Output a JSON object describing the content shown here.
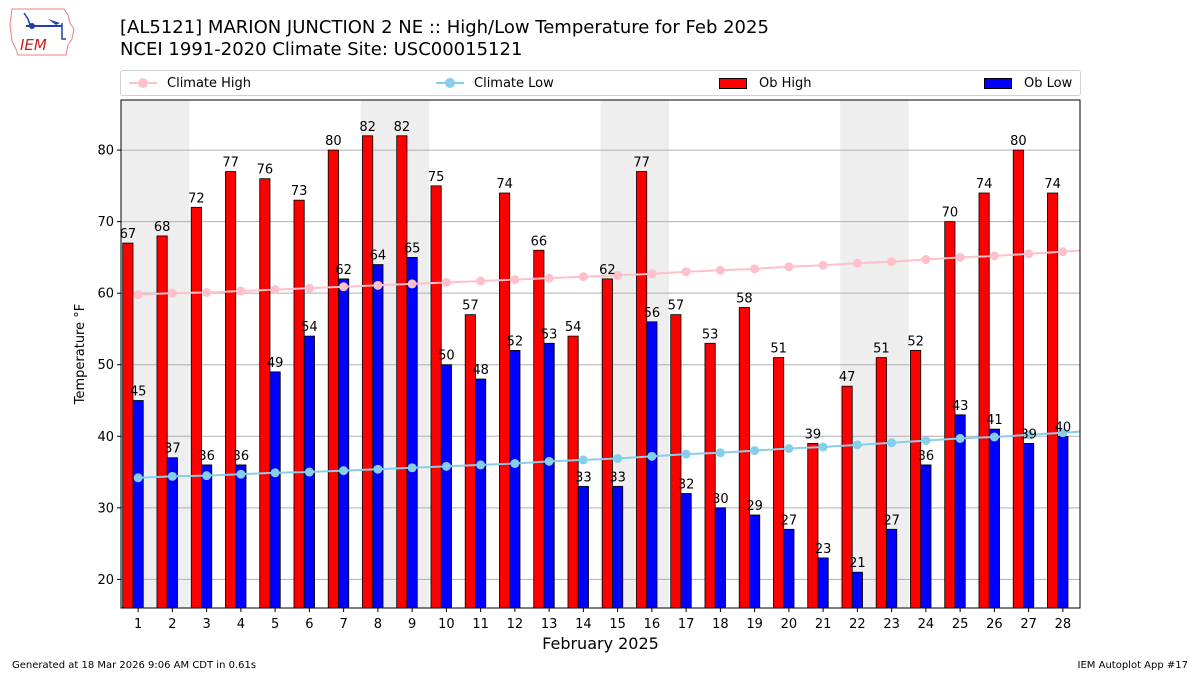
{
  "header": {
    "title_line1": "[AL5121] MARION JUNCTION 2 NE :: High/Low Temperature for Feb 2025",
    "title_line2": "NCEI 1991-2020 Climate Site: USC00015121",
    "logo_text": "IEM"
  },
  "legend": {
    "climate_high": "Climate High",
    "climate_low": "Climate Low",
    "ob_high": "Ob High",
    "ob_low": "Ob Low"
  },
  "footer": {
    "generated": "Generated at 18 Mar 2026 9:06 AM CDT in 0.61s",
    "app": "IEM Autoplot App #17"
  },
  "colors": {
    "ob_high": "#ff0000",
    "ob_low": "#0000ff",
    "climate_high": "#ffc0cb",
    "climate_low": "#87ceeb",
    "weekend_shade": "#eeeeee",
    "grid": "#b0b0b0"
  },
  "chart_data": {
    "type": "bar",
    "title": "[AL5121] MARION JUNCTION 2 NE :: High/Low Temperature for Feb 2025",
    "subtitle": "NCEI 1991-2020 Climate Site: USC00015121",
    "xlabel": "February 2025",
    "ylabel": "Temperature °F",
    "xlim": [
      0.5,
      28.5
    ],
    "ylim": [
      16,
      87
    ],
    "yticks": [
      20,
      30,
      40,
      50,
      60,
      70,
      80
    ],
    "grid": true,
    "legend_position": "top",
    "categories": [
      1,
      2,
      3,
      4,
      5,
      6,
      7,
      8,
      9,
      10,
      11,
      12,
      13,
      14,
      15,
      16,
      17,
      18,
      19,
      20,
      21,
      22,
      23,
      24,
      25,
      26,
      27,
      28
    ],
    "weekend_days": [
      1,
      2,
      8,
      9,
      15,
      16,
      22,
      23
    ],
    "series": [
      {
        "name": "Ob High",
        "kind": "bar",
        "values": [
          67,
          68,
          72,
          77,
          76,
          73,
          80,
          82,
          82,
          75,
          57,
          74,
          66,
          54,
          62,
          77,
          57,
          53,
          58,
          51,
          39,
          47,
          51,
          52,
          70,
          74,
          80,
          74
        ]
      },
      {
        "name": "Ob Low",
        "kind": "bar",
        "values": [
          45,
          37,
          36,
          36,
          49,
          54,
          62,
          64,
          65,
          50,
          48,
          52,
          53,
          33,
          33,
          56,
          32,
          30,
          29,
          27,
          23,
          21,
          27,
          36,
          43,
          41,
          39,
          40
        ]
      },
      {
        "name": "Climate High",
        "kind": "line",
        "values": [
          59.8,
          60.0,
          60.1,
          60.3,
          60.5,
          60.7,
          60.9,
          61.1,
          61.3,
          61.5,
          61.7,
          61.9,
          62.1,
          62.3,
          62.5,
          62.7,
          63.0,
          63.2,
          63.4,
          63.7,
          63.9,
          64.2,
          64.4,
          64.7,
          65.0,
          65.2,
          65.5,
          65.8
        ]
      },
      {
        "name": "Climate Low",
        "kind": "line",
        "values": [
          34.2,
          34.4,
          34.5,
          34.7,
          34.9,
          35.0,
          35.2,
          35.4,
          35.6,
          35.8,
          36.0,
          36.2,
          36.5,
          36.7,
          36.9,
          37.2,
          37.5,
          37.7,
          38.0,
          38.3,
          38.5,
          38.8,
          39.1,
          39.4,
          39.7,
          39.9,
          40.2,
          40.5
        ]
      }
    ]
  }
}
